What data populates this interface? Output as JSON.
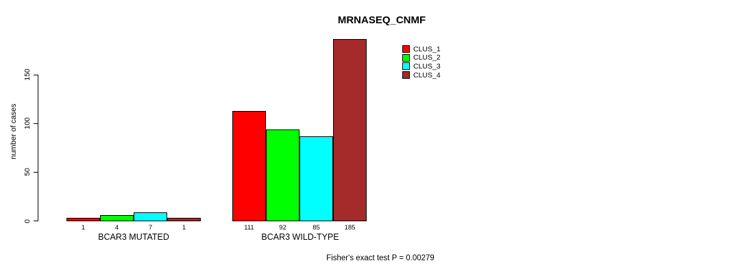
{
  "page": {
    "background_color": "#ffffff",
    "text_color": "#000000"
  },
  "chart_data": {
    "type": "bar",
    "title": "MRNASEQ_CNMF",
    "ylabel": "number of cases",
    "xlabel": "",
    "yticks": [
      0,
      50,
      100,
      150
    ],
    "ylim": [
      0,
      185
    ],
    "grid": false,
    "axis_color": "#000000",
    "categories": [
      "BCAR3 MUTATED",
      "BCAR3 WILD-TYPE"
    ],
    "series": [
      {
        "name": "CLUS_1",
        "color": "#FF0000",
        "values": [
          1,
          111
        ]
      },
      {
        "name": "CLUS_2",
        "color": "#00FF00",
        "values": [
          4,
          92
        ]
      },
      {
        "name": "CLUS_3",
        "color": "#00FFFF",
        "values": [
          7,
          85
        ]
      },
      {
        "name": "CLUS_4",
        "color": "#A52A2A",
        "values": [
          1,
          185
        ]
      }
    ],
    "bar_value_labels_shown": true,
    "legend": {
      "position": "top-right",
      "entries": [
        "CLUS_1",
        "CLUS_2",
        "CLUS_3",
        "CLUS_4"
      ]
    },
    "footer": "Fisher's exact test P = 0.00279"
  }
}
